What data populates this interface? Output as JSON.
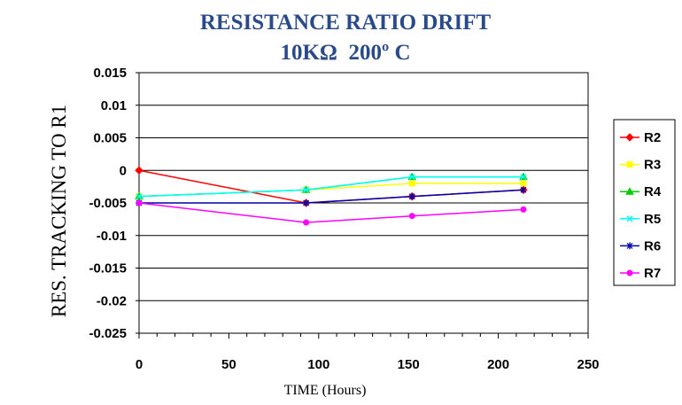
{
  "chart_data": {
    "type": "line",
    "title": "RESISTANCE RATIO DRIFT",
    "subtitle": "10KΩ  200º C",
    "xlabel": "TIME (Hours)",
    "ylabel": "RES. TRACKING TO R1",
    "xlim": [
      0,
      250
    ],
    "ylim": [
      -0.025,
      0.015
    ],
    "xticks": [
      "0",
      "50",
      "100",
      "150",
      "200",
      "250"
    ],
    "yticks": [
      "0.015",
      "0.01",
      "0.005",
      "0",
      "-0.005",
      "-0.01",
      "-0.015",
      "-0.02",
      "-0.025"
    ],
    "grid": "horizontal",
    "legend": "right",
    "x": [
      0,
      93,
      152,
      214
    ],
    "series": [
      {
        "name": "R2",
        "color": "#FF0000",
        "marker": "diamond",
        "values": [
          0,
          -0.005,
          -0.004,
          -0.003
        ]
      },
      {
        "name": "R3",
        "color": "#FFFF00",
        "marker": "square",
        "values": [
          -0.004,
          -0.003,
          -0.002,
          -0.002
        ]
      },
      {
        "name": "R4",
        "color": "#00CC00",
        "marker": "triangle",
        "values": [
          -0.004,
          -0.003,
          -0.001,
          -0.001
        ]
      },
      {
        "name": "R5",
        "color": "#00FFFF",
        "marker": "x",
        "values": [
          -0.004,
          -0.003,
          -0.001,
          -0.001
        ]
      },
      {
        "name": "R6",
        "color": "#0000AA",
        "marker": "asterisk",
        "values": [
          -0.005,
          -0.005,
          -0.004,
          -0.003
        ]
      },
      {
        "name": "R7",
        "color": "#FF00FF",
        "marker": "circle",
        "values": [
          -0.005,
          -0.008,
          -0.007,
          -0.006
        ]
      }
    ]
  }
}
